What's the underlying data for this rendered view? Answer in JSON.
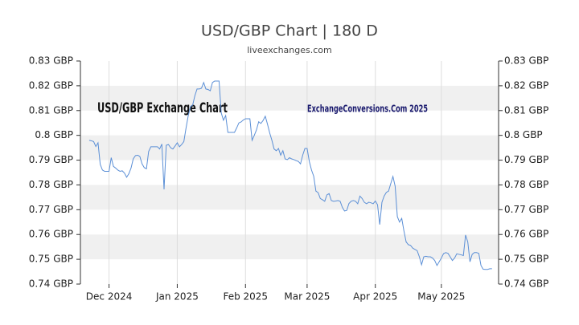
{
  "chart_data": {
    "type": "line",
    "title": "USD/GBP Chart | 180 D",
    "subtitle": "liveexchanges.com",
    "annotations": [
      "USD/GBP Exchange Chart",
      "ExchangeConversions.Com 2025"
    ],
    "color": "#5b8fd6",
    "grid": true,
    "xlim": [
      -4,
      186
    ],
    "xticks": [
      {
        "value": 9,
        "label": "Dec 2024"
      },
      {
        "value": 40,
        "label": "Jan 2025"
      },
      {
        "value": 71,
        "label": "Feb 2025"
      },
      {
        "value": 99,
        "label": "Mar 2025"
      },
      {
        "value": 130,
        "label": "Apr 2025"
      },
      {
        "value": 160,
        "label": "May 2025"
      }
    ],
    "ylim": [
      0.74,
      0.83
    ],
    "yticks": [
      {
        "value": 0.74,
        "label": "0.74 GBP"
      },
      {
        "value": 0.75,
        "label": "0.75 GBP"
      },
      {
        "value": 0.76,
        "label": "0.76 GBP"
      },
      {
        "value": 0.77,
        "label": "0.77 GBP"
      },
      {
        "value": 0.78,
        "label": "0.78 GBP"
      },
      {
        "value": 0.79,
        "label": "0.79 GBP"
      },
      {
        "value": 0.8,
        "label": "0.8 GBP"
      },
      {
        "value": 0.81,
        "label": "0.81 GBP"
      },
      {
        "value": 0.82,
        "label": "0.82 GBP"
      },
      {
        "value": 0.83,
        "label": "0.83 GBP"
      }
    ],
    "values": [
      0.798,
      0.7978,
      0.7975,
      0.7955,
      0.797,
      0.7883,
      0.786,
      0.7855,
      0.7855,
      0.7855,
      0.791,
      0.7875,
      0.7868,
      0.786,
      0.7855,
      0.7857,
      0.7848,
      0.7831,
      0.7845,
      0.7868,
      0.7905,
      0.7918,
      0.792,
      0.7915,
      0.7885,
      0.787,
      0.7865,
      0.7935,
      0.7954,
      0.7954,
      0.7954,
      0.7954,
      0.7945,
      0.7965,
      0.7782,
      0.796,
      0.7963,
      0.795,
      0.7945,
      0.7957,
      0.797,
      0.7954,
      0.7963,
      0.7975,
      0.803,
      0.808,
      0.8116,
      0.8122,
      0.816,
      0.8187,
      0.8187,
      0.819,
      0.8213,
      0.8187,
      0.8185,
      0.818,
      0.8213,
      0.8219,
      0.8219,
      0.8219,
      0.809,
      0.8061,
      0.808,
      0.8012,
      0.8012,
      0.8012,
      0.8012,
      0.803,
      0.805,
      0.8054,
      0.8062,
      0.8067,
      0.8067,
      0.8067,
      0.798,
      0.8,
      0.8022,
      0.8055,
      0.8048,
      0.806,
      0.8077,
      0.8045,
      0.801,
      0.798,
      0.7945,
      0.7938,
      0.7947,
      0.792,
      0.7938,
      0.7905,
      0.7902,
      0.791,
      0.7905,
      0.7902,
      0.7898,
      0.7895,
      0.7885,
      0.792,
      0.7947,
      0.7947,
      0.7895,
      0.786,
      0.7835,
      0.7775,
      0.7769,
      0.7745,
      0.774,
      0.7734,
      0.776,
      0.7765,
      0.7737,
      0.7734,
      0.7735,
      0.7737,
      0.7734,
      0.771,
      0.7695,
      0.7697,
      0.7725,
      0.7734,
      0.7737,
      0.7734,
      0.7724,
      0.7755,
      0.7745,
      0.773,
      0.7724,
      0.773,
      0.7728,
      0.7724,
      0.7735,
      0.772,
      0.764,
      0.773,
      0.7755,
      0.777,
      0.7775,
      0.7805,
      0.7834,
      0.7795,
      0.7672,
      0.765,
      0.7665,
      0.7614,
      0.757,
      0.7559,
      0.7556,
      0.7545,
      0.754,
      0.7535,
      0.751,
      0.7478,
      0.751,
      0.7512,
      0.751,
      0.751,
      0.7505,
      0.7495,
      0.7475,
      0.749,
      0.7505,
      0.7523,
      0.7527,
      0.7524,
      0.751,
      0.7495,
      0.7505,
      0.7522,
      0.752,
      0.7518,
      0.7515,
      0.7598,
      0.757,
      0.749,
      0.752,
      0.7527,
      0.7527,
      0.7524,
      0.7475,
      0.746,
      0.7459,
      0.7459,
      0.7462,
      0.7462
    ]
  }
}
